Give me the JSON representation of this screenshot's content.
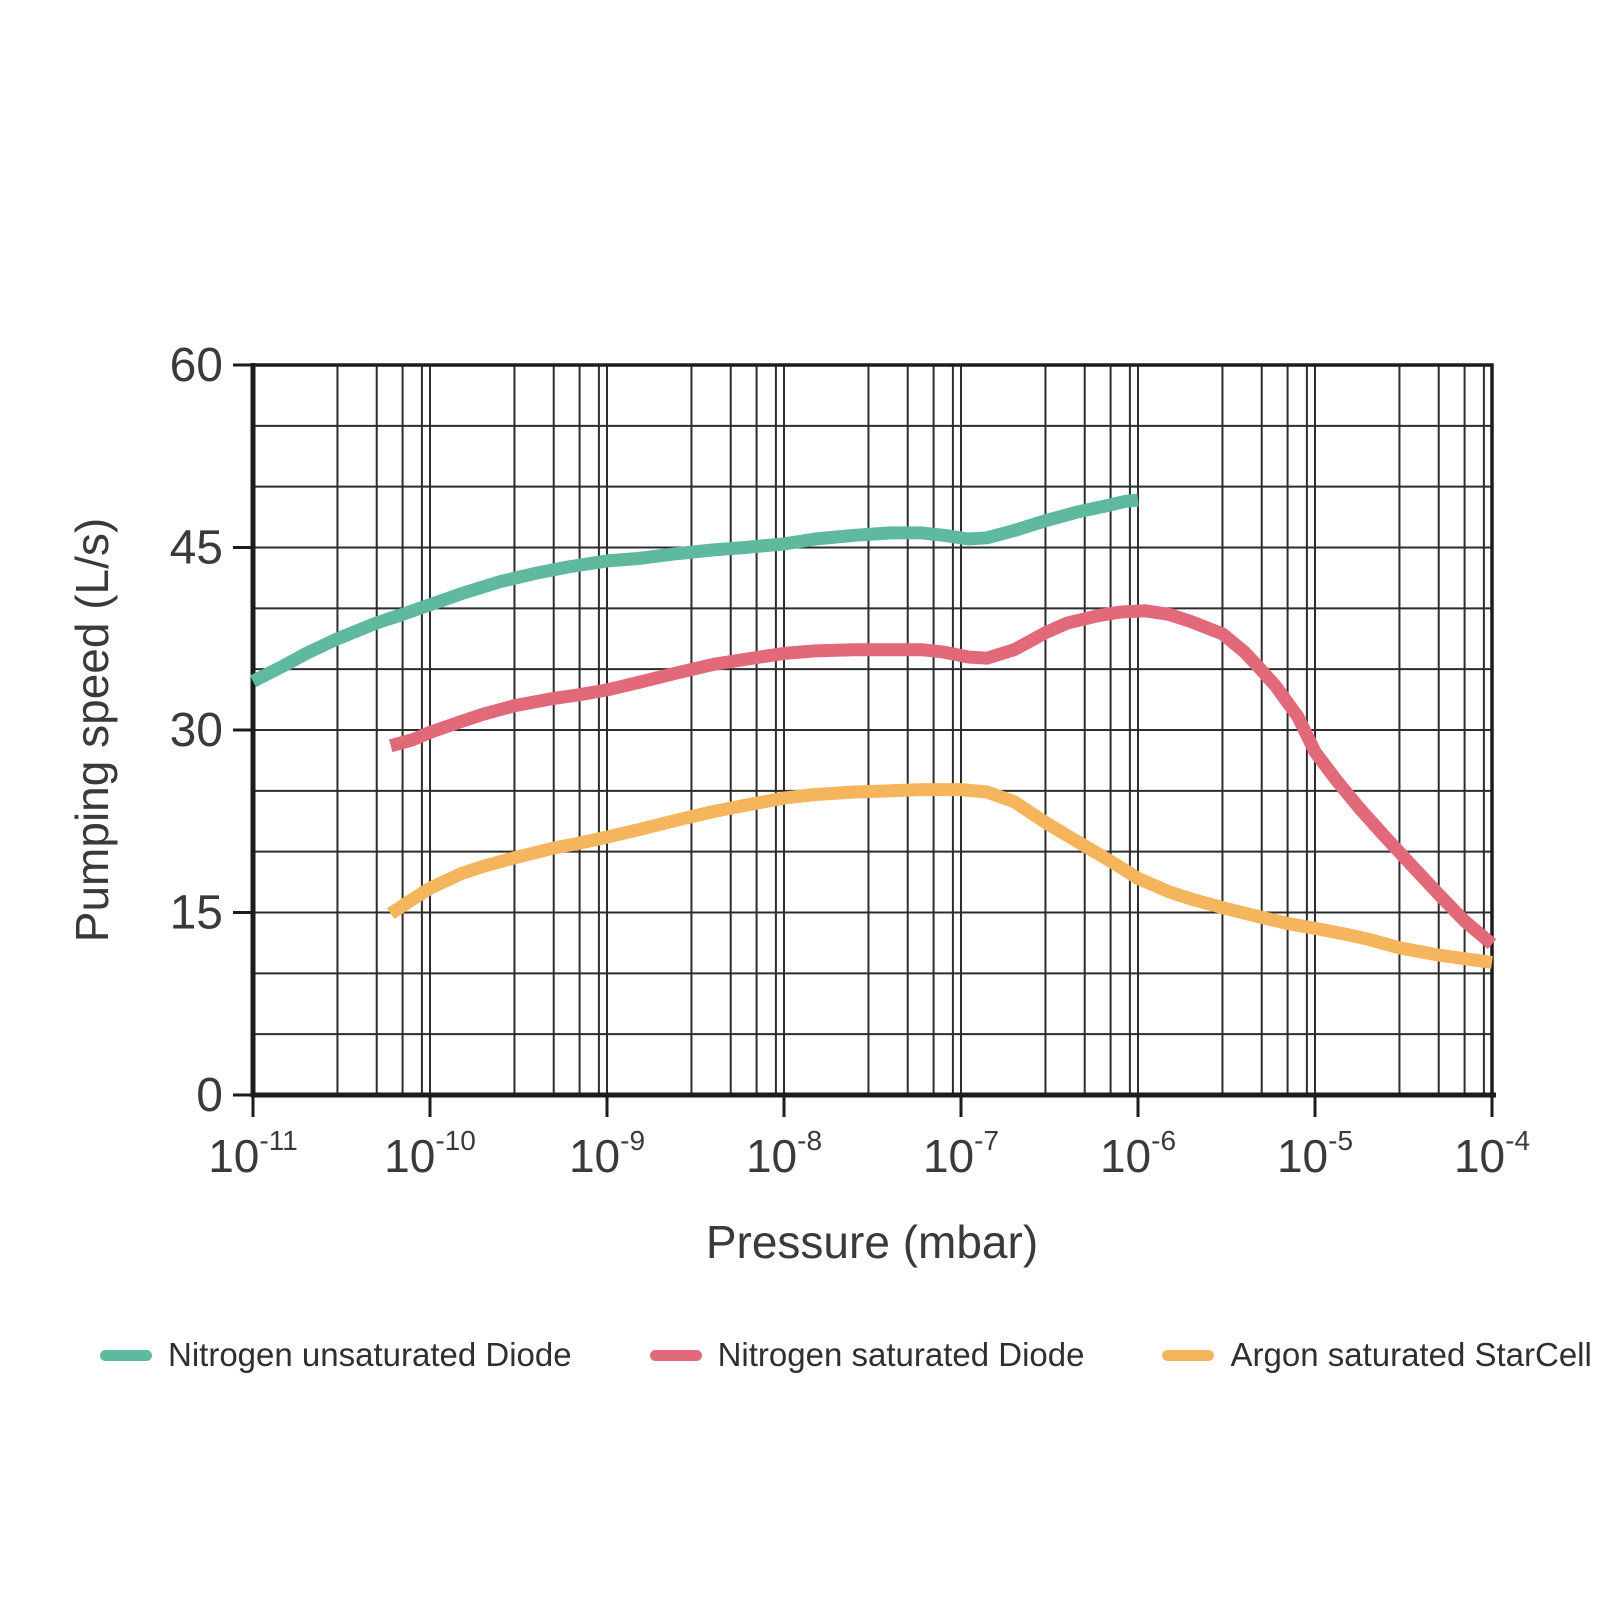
{
  "chart_data": {
    "type": "line",
    "x_scale": "log",
    "title": "",
    "xlabel": "Pressure (mbar)",
    "ylabel": "Pumping speed (L/s)",
    "xlim_exp": [
      -11,
      -4
    ],
    "ylim": [
      0,
      60
    ],
    "x_major_tick_exps": [
      -11,
      -10,
      -9,
      -8,
      -7,
      -6,
      -5,
      -4
    ],
    "x_minor_multipliers": [
      3,
      5,
      7,
      9
    ],
    "y_major_ticks": [
      0,
      15,
      30,
      45,
      60
    ],
    "y_minor_step": 5,
    "grid": true,
    "legend_position": "bottom",
    "colors": {
      "axis": "#1c1c1c",
      "grid": "#2d2d2d",
      "text": "#3a3a3a"
    },
    "series": [
      {
        "name": "Nitrogen unsaturated Diode",
        "color": "#5fb99e",
        "points": [
          [
            1e-11,
            34.0
          ],
          [
            1.5e-11,
            35.3
          ],
          [
            2e-11,
            36.3
          ],
          [
            3e-11,
            37.5
          ],
          [
            5e-11,
            38.8
          ],
          [
            7e-11,
            39.5
          ],
          [
            1e-10,
            40.3
          ],
          [
            1.5e-10,
            41.2
          ],
          [
            2.5e-10,
            42.2
          ],
          [
            4e-10,
            42.9
          ],
          [
            6e-10,
            43.4
          ],
          [
            1e-09,
            43.9
          ],
          [
            1.5e-09,
            44.1
          ],
          [
            2.5e-09,
            44.5
          ],
          [
            4e-09,
            44.8
          ],
          [
            6e-09,
            45.0
          ],
          [
            1e-08,
            45.3
          ],
          [
            1.5e-08,
            45.7
          ],
          [
            2.5e-08,
            46.0
          ],
          [
            4e-08,
            46.2
          ],
          [
            6e-08,
            46.2
          ],
          [
            8e-08,
            46.0
          ],
          [
            1.1e-07,
            45.7
          ],
          [
            1.4e-07,
            45.8
          ],
          [
            2e-07,
            46.4
          ],
          [
            3e-07,
            47.2
          ],
          [
            4.5e-07,
            47.9
          ],
          [
            6.5e-07,
            48.4
          ],
          [
            8.5e-07,
            48.8
          ],
          [
            1e-06,
            48.9
          ]
        ]
      },
      {
        "name": "Nitrogen saturated Diode",
        "color": "#e2697a",
        "points": [
          [
            6e-11,
            28.7
          ],
          [
            8e-11,
            29.2
          ],
          [
            1e-10,
            29.8
          ],
          [
            1.5e-10,
            30.7
          ],
          [
            2e-10,
            31.3
          ],
          [
            3e-10,
            32.0
          ],
          [
            5e-10,
            32.6
          ],
          [
            7e-10,
            32.9
          ],
          [
            1e-09,
            33.3
          ],
          [
            1.5e-09,
            33.9
          ],
          [
            2.5e-09,
            34.7
          ],
          [
            4e-09,
            35.4
          ],
          [
            6e-09,
            35.8
          ],
          [
            1e-08,
            36.3
          ],
          [
            1.5e-08,
            36.5
          ],
          [
            2.5e-08,
            36.6
          ],
          [
            4e-08,
            36.6
          ],
          [
            6e-08,
            36.6
          ],
          [
            8e-08,
            36.4
          ],
          [
            1.1e-07,
            36.0
          ],
          [
            1.4e-07,
            35.9
          ],
          [
            2e-07,
            36.6
          ],
          [
            3e-07,
            38.0
          ],
          [
            4e-07,
            38.8
          ],
          [
            6e-07,
            39.4
          ],
          [
            8e-07,
            39.7
          ],
          [
            1.1e-06,
            39.8
          ],
          [
            1.5e-06,
            39.5
          ],
          [
            2e-06,
            38.9
          ],
          [
            3e-06,
            37.9
          ],
          [
            4e-06,
            36.4
          ],
          [
            5e-06,
            34.9
          ],
          [
            6e-06,
            33.6
          ],
          [
            8e-06,
            31.1
          ],
          [
            1e-05,
            28.2
          ],
          [
            1.3e-05,
            26.0
          ],
          [
            1.8e-05,
            23.5
          ],
          [
            2.5e-05,
            21.2
          ],
          [
            3.5e-05,
            18.9
          ],
          [
            5e-05,
            16.5
          ],
          [
            7e-05,
            14.3
          ],
          [
            0.0001,
            12.4
          ]
        ]
      },
      {
        "name": "Argon saturated StarCell",
        "color": "#f5b55c",
        "points": [
          [
            6e-11,
            14.9
          ],
          [
            8e-11,
            16.1
          ],
          [
            1e-10,
            17.0
          ],
          [
            1.5e-10,
            18.2
          ],
          [
            2e-10,
            18.8
          ],
          [
            3e-10,
            19.5
          ],
          [
            5e-10,
            20.3
          ],
          [
            7e-10,
            20.7
          ],
          [
            1e-09,
            21.2
          ],
          [
            1.5e-09,
            21.8
          ],
          [
            2.5e-09,
            22.6
          ],
          [
            4e-09,
            23.3
          ],
          [
            6e-09,
            23.8
          ],
          [
            1e-08,
            24.4
          ],
          [
            1.5e-08,
            24.7
          ],
          [
            2.5e-08,
            24.9
          ],
          [
            4e-08,
            25.0
          ],
          [
            6e-08,
            25.1
          ],
          [
            1e-07,
            25.1
          ],
          [
            1.4e-07,
            24.9
          ],
          [
            2e-07,
            24.1
          ],
          [
            3e-07,
            22.4
          ],
          [
            4e-07,
            21.3
          ],
          [
            6e-07,
            19.8
          ],
          [
            8e-07,
            18.7
          ],
          [
            1e-06,
            17.8
          ],
          [
            1.5e-06,
            16.7
          ],
          [
            2e-06,
            16.1
          ],
          [
            3e-06,
            15.4
          ],
          [
            5e-06,
            14.6
          ],
          [
            7e-06,
            14.1
          ],
          [
            1e-05,
            13.7
          ],
          [
            1.5e-05,
            13.2
          ],
          [
            2e-05,
            12.8
          ],
          [
            3e-05,
            12.1
          ],
          [
            5e-05,
            11.5
          ],
          [
            7e-05,
            11.2
          ],
          [
            0.0001,
            10.9
          ]
        ]
      }
    ]
  }
}
